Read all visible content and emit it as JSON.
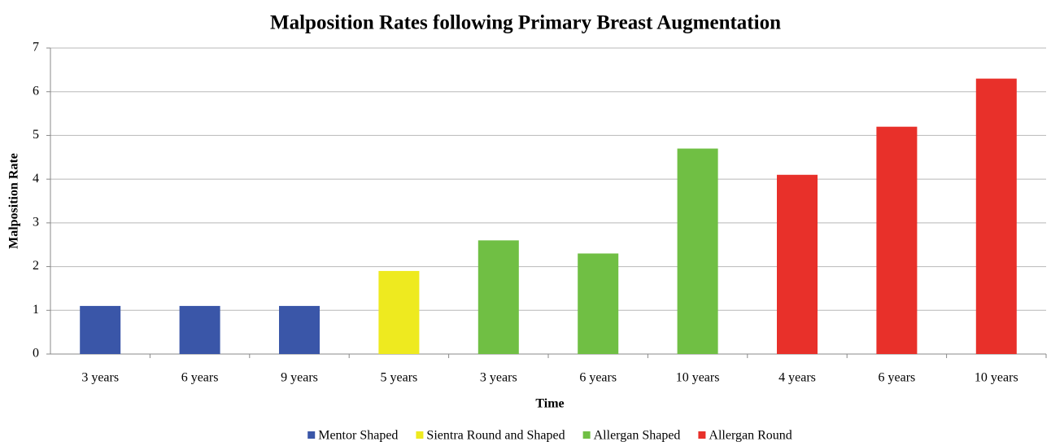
{
  "chart_data": {
    "type": "bar",
    "title": "Malposition Rates following Primary Breast Augmentation",
    "xlabel": "Time",
    "ylabel": "Malposition Rate",
    "categories": [
      "3 years",
      "6 years",
      "9 years",
      "5 years",
      "3 years",
      "6 years",
      "10 years",
      "4 years",
      "6 years",
      "10 years"
    ],
    "series": [
      {
        "name": "Mentor Shaped",
        "color": "#3a56a8",
        "values": [
          1.1,
          1.1,
          1.1,
          null,
          null,
          null,
          null,
          null,
          null,
          null
        ]
      },
      {
        "name": "Sientra Round and Shaped",
        "color": "#eeea1f",
        "values": [
          null,
          null,
          null,
          1.9,
          null,
          null,
          null,
          null,
          null,
          null
        ]
      },
      {
        "name": "Allergan Shaped",
        "color": "#70bf44",
        "values": [
          null,
          null,
          null,
          null,
          2.6,
          2.3,
          4.7,
          null,
          null,
          null
        ]
      },
      {
        "name": "Allergan Round",
        "color": "#e8302a",
        "values": [
          null,
          null,
          null,
          null,
          null,
          null,
          null,
          4.1,
          5.2,
          6.3
        ]
      }
    ],
    "ylim": [
      0,
      7
    ],
    "yticks": [
      0,
      1,
      2,
      3,
      4,
      5,
      6,
      7
    ],
    "grid": true,
    "legend": "bottom"
  }
}
